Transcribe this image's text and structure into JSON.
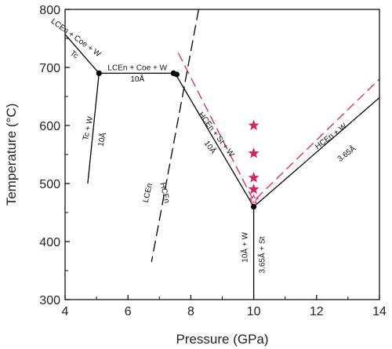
{
  "chart_data": {
    "type": "line",
    "xlabel": "Pressure (GPa)",
    "ylabel": "Temperature (°C)",
    "xlim": [
      4,
      14
    ],
    "ylim": [
      300,
      800
    ],
    "xticks": [
      4,
      6,
      8,
      10,
      12,
      14
    ],
    "yticks": [
      300,
      400,
      500,
      600,
      700,
      800
    ],
    "grid": false,
    "reaction_lines": [
      {
        "style": "solid",
        "color": "#000000",
        "points": [
          [
            4,
            757
          ],
          [
            5.08,
            690
          ],
          [
            7.5,
            690
          ],
          [
            10,
            460
          ],
          [
            14,
            648
          ]
        ]
      },
      {
        "style": "solid",
        "color": "#000000",
        "points": [
          [
            5.08,
            690
          ],
          [
            4.72,
            500
          ]
        ]
      },
      {
        "style": "solid",
        "color": "#000000",
        "points": [
          [
            10,
            460
          ],
          [
            10,
            303
          ]
        ]
      }
    ],
    "boundary_lines": [
      {
        "style": "dashed",
        "color": "#000000",
        "points": [
          [
            8.25,
            800
          ],
          [
            6.75,
            365
          ]
        ]
      },
      {
        "style": "dashed",
        "color": "#d6255e",
        "points": [
          [
            7.6,
            725
          ],
          [
            10,
            470
          ],
          [
            14,
            680
          ]
        ]
      }
    ],
    "invariant_points": [
      [
        5.08,
        690
      ],
      [
        7.45,
        690
      ],
      [
        7.55,
        688
      ],
      [
        10,
        460
      ]
    ],
    "stars": [
      {
        "x": 10,
        "y": 600,
        "filled": true
      },
      {
        "x": 10,
        "y": 552,
        "filled": true
      },
      {
        "x": 10,
        "y": 510,
        "filled": true
      },
      {
        "x": 10,
        "y": 490,
        "filled": true
      },
      {
        "x": 10,
        "y": 472,
        "filled": false
      }
    ],
    "annotations": [
      {
        "text": "LCEn + Coe + W",
        "x": 4.3,
        "y": 748,
        "angle": 36
      },
      {
        "text": "Tc",
        "x": 4.25,
        "y": 719,
        "angle": 36
      },
      {
        "text": "LCEn + Coe + W",
        "x": 6.3,
        "y": 695,
        "angle": 0
      },
      {
        "text": "10Å",
        "x": 6.3,
        "y": 676,
        "angle": 0
      },
      {
        "text": "Tc + W",
        "x": 4.8,
        "y": 594,
        "angle": -78
      },
      {
        "text": "10Å",
        "x": 5.25,
        "y": 575,
        "angle": -78
      },
      {
        "text": "LCEn",
        "x": 6.7,
        "y": 483,
        "angle": -77
      },
      {
        "text": "HCEn",
        "x": 7.1,
        "y": 483,
        "angle": 77
      },
      {
        "text": "HCEn + St + W",
        "x": 8.75,
        "y": 582,
        "angle": 53
      },
      {
        "text": "10Å",
        "x": 8.55,
        "y": 560,
        "angle": 53
      },
      {
        "text": "HCEn + W",
        "x": 12.5,
        "y": 578,
        "angle": -37
      },
      {
        "text": "3.65Å",
        "x": 13.0,
        "y": 548,
        "angle": -37
      },
      {
        "text": "10Å + W",
        "x": 9.8,
        "y": 390,
        "angle": -90
      },
      {
        "text": "3.65Å + St",
        "x": 10.35,
        "y": 377,
        "angle": -90
      }
    ]
  }
}
